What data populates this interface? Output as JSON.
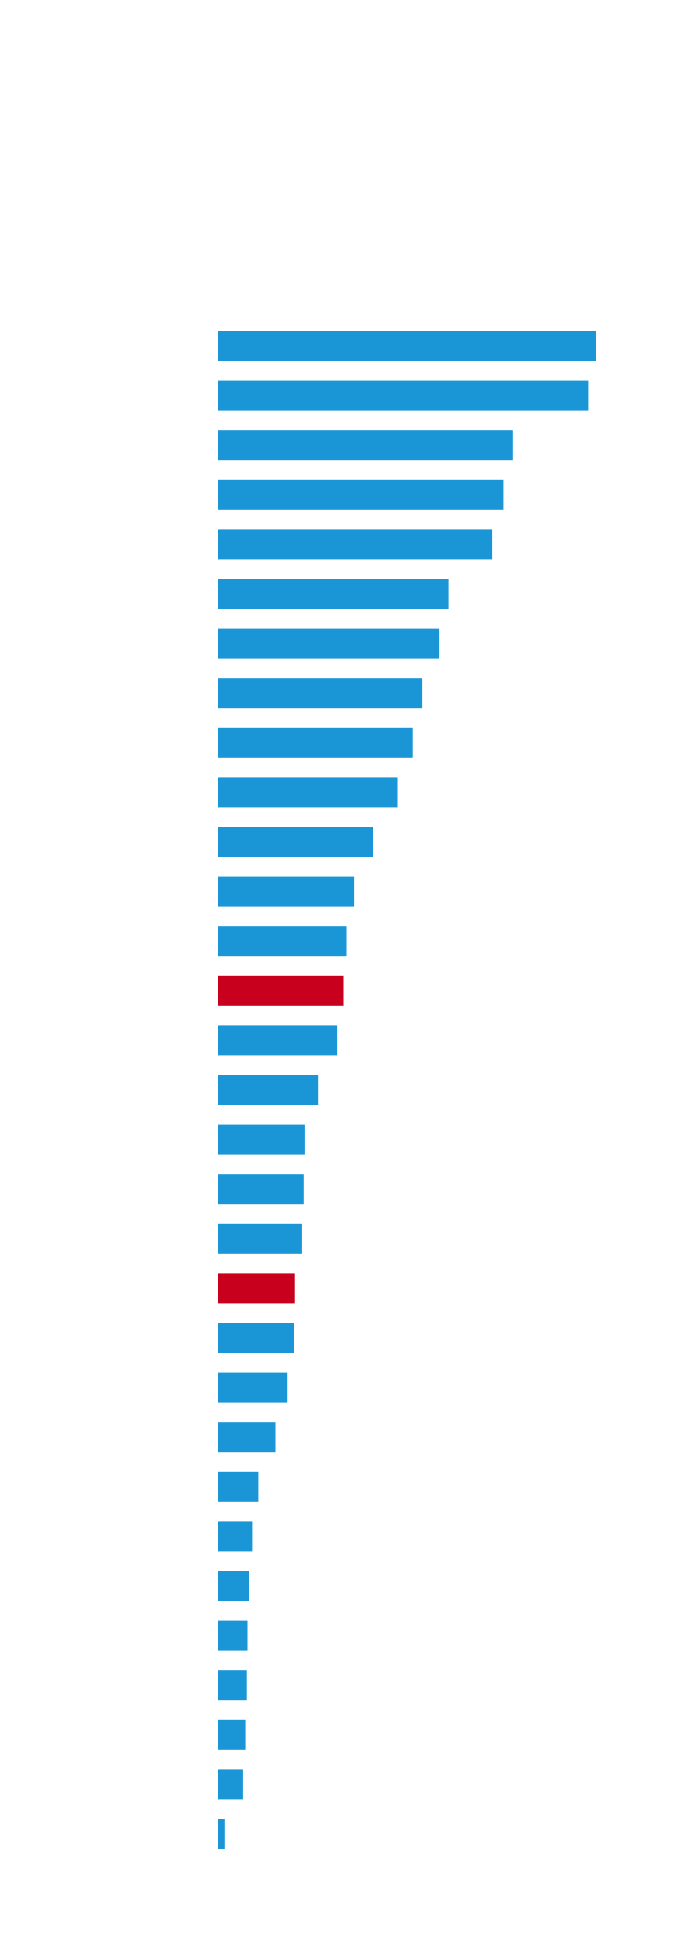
{
  "chart_data": {
    "type": "bar",
    "orientation": "horizontal",
    "title": "",
    "xlabel": "",
    "ylabel": "",
    "grid": false,
    "legend": "none",
    "xlim": [
      0,
      100
    ],
    "values": [
      100,
      98,
      78,
      75.5,
      72.5,
      61,
      58.5,
      54,
      51.5,
      47.5,
      41,
      36,
      34,
      33.2,
      31.5,
      26.5,
      23,
      22.7,
      22.2,
      20.3,
      20.1,
      18.3,
      15.2,
      10.7,
      9.1,
      8.2,
      7.8,
      7.6,
      7.3,
      6.6,
      1.8
    ],
    "highlighted_indices": [
      13,
      19
    ],
    "colors": {
      "default": "#1a96d6",
      "highlight": "#c8001e"
    }
  }
}
